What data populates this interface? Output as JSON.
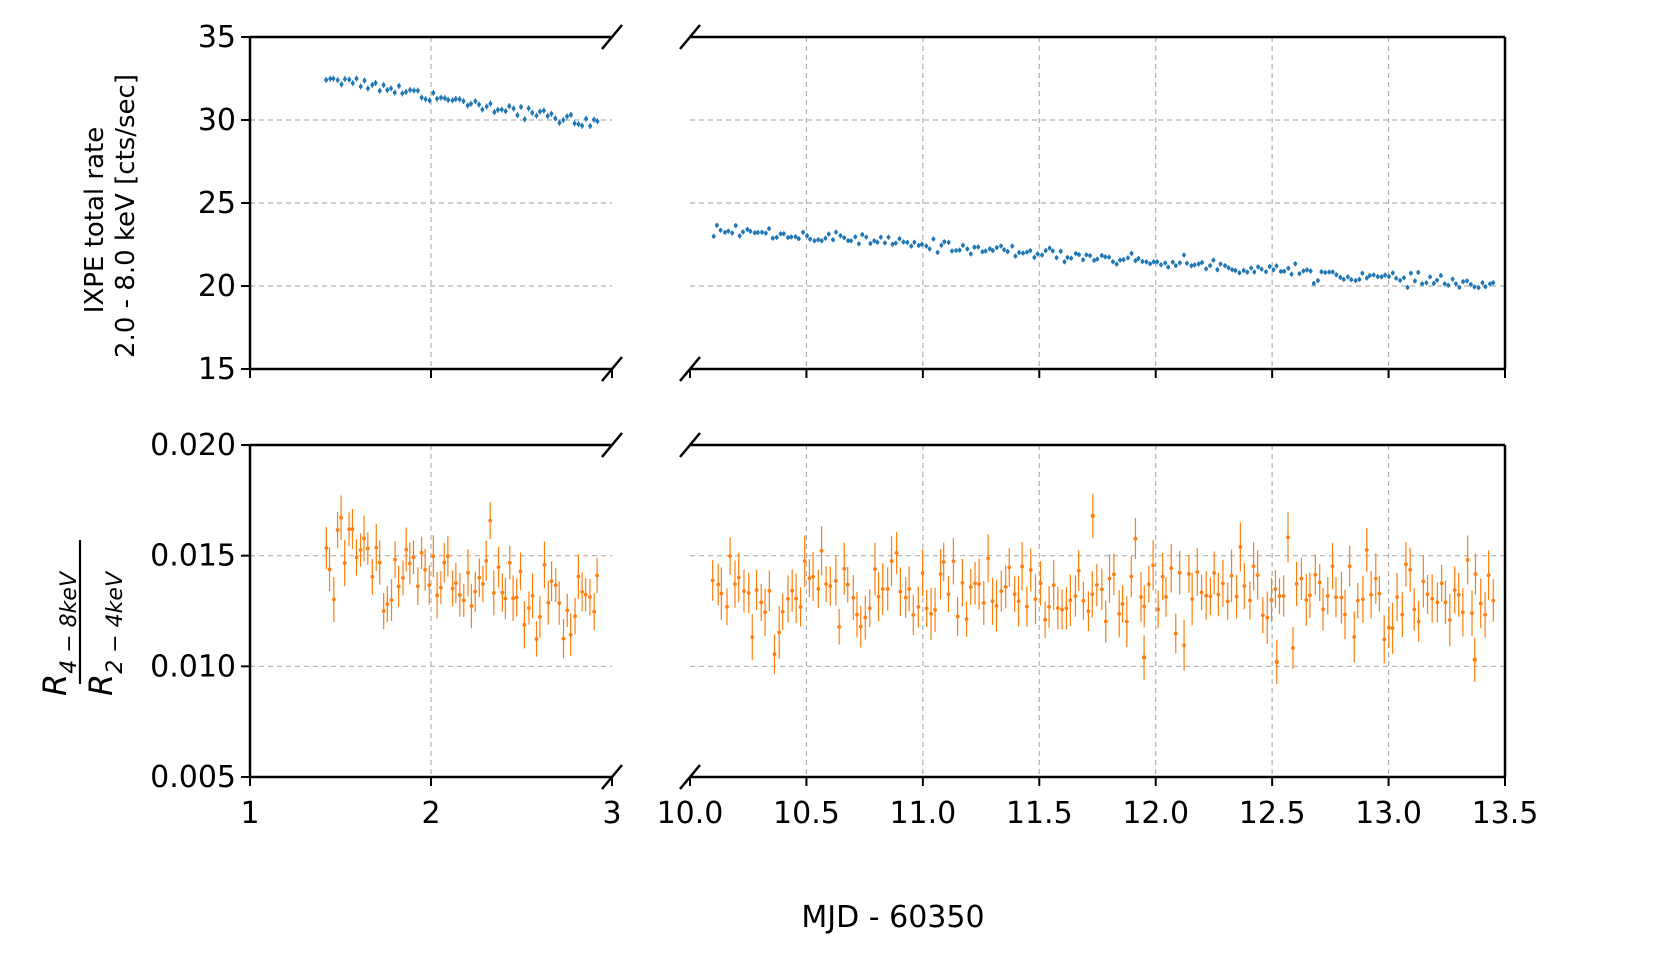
{
  "chart_data": {
    "type": "scatter",
    "layout": "2x2 broken-axis panels (left: x 1–3, right: x 10.0–13.5)",
    "xlabel": "MJD - 60350",
    "x_ticks_left": [
      "1",
      "2",
      "3"
    ],
    "x_ticks_right": [
      "10.0",
      "10.5",
      "11.0",
      "11.5",
      "12.0",
      "12.5",
      "13.0",
      "13.5"
    ],
    "xlim_left": [
      1,
      3
    ],
    "xlim_right": [
      10.0,
      13.5
    ],
    "top": {
      "ylabel_line1": "IXPE total rate",
      "ylabel_line2": "2.0 - 8.0 keV [cts/sec]",
      "ylim": [
        15,
        35
      ],
      "y_ticks": [
        "35",
        "30",
        "25",
        "20",
        "15"
      ],
      "color": "#1f77b4",
      "series": [
        {
          "name": "rate_segment_1",
          "x_range": [
            1.42,
            2.92
          ],
          "y_start": 32.6,
          "y_end": 29.7,
          "err": 0.18,
          "n_points": 72
        },
        {
          "name": "rate_segment_2",
          "x_range": [
            10.1,
            13.45
          ],
          "y_start": 23.4,
          "y_end": 20.0,
          "err": 0.15,
          "n_points": 210
        }
      ]
    },
    "bottom": {
      "ylabel_num": "R",
      "ylabel_num_sub": "4 − 8keV",
      "ylabel_den": "R",
      "ylabel_den_sub": "2 − 4keV",
      "ylim": [
        0.005,
        0.02
      ],
      "y_ticks": [
        "0.020",
        "0.015",
        "0.010",
        "0.005"
      ],
      "color": "#ff7f0e",
      "series": [
        {
          "name": "ratio_segment_1",
          "x_range": [
            1.42,
            2.92
          ],
          "y_start": 0.0152,
          "y_end": 0.0127,
          "scatter": 0.0012,
          "err": 0.0009,
          "n_points": 72
        },
        {
          "name": "ratio_segment_2",
          "x_range": [
            10.1,
            13.45
          ],
          "y_mean": 0.0133,
          "scatter": 0.0011,
          "err": 0.001,
          "n_points": 180,
          "notable_points": [
            {
              "x": 11.73,
              "y": 0.0168
            },
            {
              "x": 12.52,
              "y": 0.0102
            },
            {
              "x": 13.37,
              "y": 0.0103
            },
            {
              "x": 11.95,
              "y": 0.0104
            }
          ]
        }
      ]
    }
  }
}
